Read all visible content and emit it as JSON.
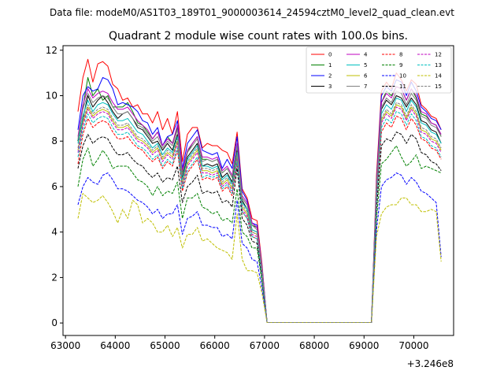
{
  "suptitle": "Data file: modeM0/AS1T03_189T01_9000003614_24594cztM0_level2_quad_clean.evt",
  "chart_data": {
    "type": "line",
    "title": "Quadrant 2 module wise count rates with 100.0s bins.",
    "xlabel": "",
    "ylabel": "",
    "x_offset_label": "+3.246e8",
    "xlim": [
      62950,
      70800
    ],
    "ylim": [
      -0.55,
      12.2
    ],
    "x_ticks": [
      63000,
      64000,
      65000,
      66000,
      67000,
      68000,
      69000,
      70000
    ],
    "x_tick_labels": [
      "63000",
      "64000",
      "65000",
      "66000",
      "67000",
      "68000",
      "69000",
      "70000"
    ],
    "y_ticks": [
      0,
      2,
      4,
      6,
      8,
      10,
      12
    ],
    "y_tick_labels": [
      "0",
      "2",
      "4",
      "6",
      "8",
      "10",
      "12"
    ],
    "grid": false,
    "legend_position": "top-right",
    "legend_columns": 4,
    "gaps": [
      [
        67060,
        69160
      ]
    ],
    "x": [
      63250,
      63350,
      63450,
      63550,
      63650,
      63750,
      63850,
      63950,
      64050,
      64150,
      64250,
      64350,
      64450,
      64550,
      64650,
      64750,
      64850,
      64950,
      65050,
      65150,
      65250,
      65350,
      65450,
      65550,
      65650,
      65750,
      65850,
      65950,
      66050,
      66150,
      66250,
      66350,
      66450,
      66550,
      66650,
      66750,
      66850,
      66950,
      67050,
      69150,
      69250,
      69350,
      69450,
      69550,
      69650,
      69750,
      69850,
      69950,
      70050,
      70150,
      70250,
      70350,
      70450,
      70550
    ],
    "series": [
      {
        "name": "0",
        "color": "#ff0000",
        "dash": "solid",
        "values": [
          9.3,
          10.8,
          11.6,
          10.6,
          11.4,
          11.5,
          11.3,
          10.5,
          10.3,
          9.8,
          9.9,
          9.5,
          9.6,
          9.2,
          9.2,
          8.8,
          9.3,
          8.5,
          9.0,
          8.3,
          9.3,
          7.1,
          8.3,
          8.6,
          8.6,
          7.7,
          7.9,
          7.8,
          7.8,
          7.6,
          7.5,
          7.0,
          8.4,
          5.9,
          5.5,
          4.6,
          4.5,
          2.6,
          0.02,
          0.02,
          6.5,
          10.2,
          10.6,
          10.3,
          11.0,
          10.7,
          10.2,
          10.7,
          10.5,
          9.6,
          9.4,
          9.1,
          9.0,
          8.5
        ]
      },
      {
        "name": "1",
        "color": "#008000",
        "dash": "solid",
        "values": [
          8.0,
          9.5,
          10.8,
          10.0,
          10.3,
          9.8,
          10.0,
          9.5,
          9.5,
          9.5,
          9.7,
          9.3,
          8.8,
          8.7,
          8.4,
          8.1,
          8.4,
          7.8,
          8.2,
          7.9,
          8.6,
          6.6,
          7.5,
          7.9,
          8.2,
          7.2,
          7.2,
          7.1,
          7.2,
          6.6,
          6.8,
          6.4,
          7.8,
          5.5,
          5.2,
          4.3,
          4.2,
          2.4,
          0.02,
          0.02,
          6.0,
          9.7,
          10.2,
          10.0,
          10.4,
          10.3,
          9.8,
          10.3,
          9.9,
          9.2,
          9.1,
          8.8,
          8.7,
          8.2
        ]
      },
      {
        "name": "2",
        "color": "#0000ff",
        "dash": "solid",
        "values": [
          8.5,
          10.0,
          10.4,
          10.2,
          10.3,
          10.8,
          10.7,
          10.3,
          9.6,
          9.7,
          9.6,
          9.5,
          9.3,
          8.9,
          8.8,
          8.3,
          8.6,
          7.8,
          8.2,
          8.3,
          8.9,
          6.8,
          7.9,
          8.2,
          8.5,
          7.6,
          7.5,
          7.4,
          7.5,
          6.8,
          7.2,
          6.8,
          8.2,
          5.8,
          5.4,
          4.4,
          4.3,
          2.5,
          0.02,
          0.02,
          6.2,
          10.0,
          10.4,
          10.2,
          10.7,
          10.6,
          10.0,
          10.6,
          10.2,
          9.5,
          9.3,
          9.0,
          8.9,
          8.5
        ]
      },
      {
        "name": "3",
        "color": "#000000",
        "dash": "solid",
        "values": [
          8.0,
          9.0,
          10.0,
          9.5,
          9.8,
          10.0,
          9.7,
          9.3,
          9.0,
          9.2,
          9.3,
          9.0,
          8.6,
          8.5,
          8.2,
          7.9,
          8.0,
          7.6,
          7.9,
          7.6,
          8.3,
          6.4,
          7.3,
          7.6,
          7.9,
          6.9,
          7.0,
          6.9,
          7.0,
          6.4,
          6.6,
          6.2,
          7.6,
          5.4,
          5.0,
          4.1,
          4.0,
          2.3,
          0.02,
          0.02,
          5.9,
          9.4,
          9.8,
          9.6,
          10.0,
          9.9,
          9.5,
          9.9,
          9.6,
          8.9,
          8.8,
          8.5,
          8.4,
          7.9
        ]
      },
      {
        "name": "4",
        "color": "#bf00bf",
        "dash": "solid",
        "values": [
          8.2,
          9.6,
          10.3,
          9.9,
          10.1,
          10.2,
          10.1,
          9.7,
          9.4,
          9.4,
          9.5,
          9.2,
          8.9,
          8.7,
          8.5,
          8.1,
          8.4,
          7.8,
          8.1,
          7.9,
          8.7,
          6.7,
          7.6,
          7.9,
          8.2,
          7.3,
          7.3,
          7.2,
          7.3,
          6.7,
          6.9,
          6.5,
          7.9,
          5.6,
          5.3,
          4.4,
          4.2,
          2.5,
          0.02,
          0.02,
          6.1,
          9.7,
          10.1,
          9.9,
          10.4,
          10.3,
          9.8,
          10.3,
          10.0,
          9.3,
          9.2,
          8.8,
          8.7,
          8.3
        ]
      },
      {
        "name": "5",
        "color": "#00bfbf",
        "dash": "solid",
        "values": [
          7.9,
          9.1,
          9.8,
          9.3,
          9.6,
          9.7,
          9.6,
          9.2,
          8.9,
          8.9,
          9.0,
          8.7,
          8.4,
          8.3,
          8.0,
          7.7,
          7.9,
          7.4,
          7.7,
          7.5,
          8.2,
          6.3,
          7.2,
          7.5,
          7.8,
          6.9,
          6.9,
          6.8,
          6.9,
          6.3,
          6.5,
          6.1,
          7.5,
          5.3,
          5.0,
          4.1,
          4.0,
          2.3,
          0.02,
          0.02,
          5.8,
          9.2,
          9.6,
          9.4,
          9.9,
          9.8,
          9.3,
          9.8,
          9.5,
          8.8,
          8.7,
          8.4,
          8.3,
          7.9
        ]
      },
      {
        "name": "6",
        "color": "#bfbf00",
        "dash": "solid",
        "values": [
          7.6,
          8.8,
          9.5,
          9.1,
          9.3,
          9.4,
          9.3,
          8.9,
          8.6,
          8.6,
          8.7,
          8.4,
          8.1,
          8.0,
          7.8,
          7.5,
          7.7,
          7.2,
          7.5,
          7.3,
          8.0,
          6.1,
          7.0,
          7.3,
          7.6,
          6.7,
          6.7,
          6.6,
          6.7,
          6.1,
          6.3,
          5.9,
          7.3,
          5.1,
          4.8,
          4.0,
          3.9,
          2.2,
          0.02,
          0.02,
          5.6,
          8.9,
          9.3,
          9.1,
          9.6,
          9.5,
          9.0,
          9.5,
          9.2,
          8.5,
          8.4,
          8.1,
          8.0,
          7.6
        ]
      },
      {
        "name": "7",
        "color": "#808080",
        "dash": "solid",
        "values": [
          8.1,
          9.4,
          10.1,
          9.7,
          9.9,
          10.0,
          9.9,
          9.5,
          9.2,
          9.2,
          9.3,
          9.0,
          8.7,
          8.6,
          8.3,
          8.0,
          8.2,
          7.7,
          8.0,
          7.8,
          8.5,
          6.5,
          7.5,
          7.8,
          8.1,
          7.1,
          7.2,
          7.1,
          7.2,
          6.6,
          6.8,
          6.4,
          7.8,
          5.5,
          5.2,
          4.3,
          4.1,
          2.4,
          0.02,
          0.02,
          6.0,
          9.5,
          9.9,
          9.7,
          10.2,
          10.1,
          9.6,
          10.1,
          9.8,
          9.1,
          9.0,
          8.7,
          8.6,
          8.2
        ]
      },
      {
        "name": "8",
        "color": "#ff0000",
        "dash": "dashed",
        "values": [
          7.0,
          8.3,
          9.0,
          8.6,
          8.8,
          8.9,
          8.8,
          8.4,
          8.1,
          8.1,
          8.2,
          7.9,
          7.7,
          7.6,
          7.3,
          7.1,
          7.3,
          6.8,
          7.1,
          6.9,
          7.6,
          5.8,
          6.6,
          6.9,
          7.2,
          6.3,
          6.4,
          6.3,
          6.4,
          5.8,
          6.0,
          5.6,
          7.0,
          4.9,
          4.6,
          3.8,
          3.7,
          2.1,
          0.02,
          0.02,
          5.3,
          8.4,
          8.8,
          8.6,
          9.1,
          9.0,
          8.5,
          9.0,
          8.7,
          8.1,
          8.0,
          7.7,
          7.6,
          7.2
        ]
      },
      {
        "name": "9",
        "color": "#008000",
        "dash": "dashed",
        "values": [
          6.0,
          7.2,
          7.7,
          6.9,
          7.2,
          7.6,
          7.3,
          6.8,
          6.9,
          6.9,
          6.9,
          6.6,
          6.3,
          6.2,
          6.0,
          5.6,
          6.0,
          5.6,
          5.8,
          5.7,
          6.2,
          4.6,
          5.5,
          5.5,
          5.7,
          5.1,
          5.0,
          4.8,
          4.9,
          4.5,
          4.6,
          4.4,
          5.9,
          4.0,
          3.8,
          3.3,
          3.3,
          1.8,
          0.02,
          0.02,
          4.6,
          7.0,
          7.2,
          7.5,
          7.8,
          7.3,
          6.9,
          7.1,
          7.4,
          6.8,
          6.9,
          6.8,
          6.7,
          6.6
        ]
      },
      {
        "name": "10",
        "color": "#0000ff",
        "dash": "dashed",
        "values": [
          5.2,
          6.0,
          6.4,
          6.2,
          6.1,
          6.5,
          6.6,
          6.3,
          5.9,
          5.9,
          5.8,
          5.6,
          5.4,
          5.3,
          5.1,
          4.8,
          5.0,
          4.6,
          4.8,
          4.8,
          5.2,
          3.9,
          4.6,
          4.7,
          4.9,
          4.3,
          4.3,
          4.2,
          4.2,
          3.8,
          3.9,
          3.7,
          5.4,
          3.5,
          3.3,
          2.8,
          2.7,
          1.5,
          0.02,
          0.02,
          4.1,
          6.0,
          6.3,
          6.4,
          6.6,
          6.5,
          6.1,
          6.4,
          6.2,
          5.8,
          5.7,
          5.5,
          5.3,
          2.9
        ]
      },
      {
        "name": "11",
        "color": "#000000",
        "dash": "dashed",
        "values": [
          6.8,
          7.8,
          8.3,
          7.9,
          8.1,
          8.2,
          8.1,
          7.7,
          7.4,
          7.4,
          7.5,
          7.2,
          7.0,
          6.9,
          6.6,
          6.4,
          6.6,
          6.2,
          6.4,
          6.3,
          6.9,
          5.3,
          6.0,
          6.2,
          6.5,
          5.7,
          5.8,
          5.7,
          5.8,
          5.3,
          5.4,
          5.1,
          6.8,
          4.6,
          4.3,
          3.6,
          3.5,
          2.0,
          0.02,
          0.02,
          5.0,
          7.8,
          8.1,
          8.0,
          8.4,
          8.3,
          7.9,
          8.3,
          8.1,
          7.5,
          7.4,
          7.1,
          7.0,
          6.7
        ]
      },
      {
        "name": "12",
        "color": "#bf00bf",
        "dash": "dashed",
        "values": [
          7.5,
          8.7,
          9.4,
          9.0,
          9.2,
          9.3,
          9.2,
          8.8,
          8.5,
          8.5,
          8.6,
          8.3,
          8.0,
          7.9,
          7.7,
          7.4,
          7.6,
          7.1,
          7.4,
          7.2,
          7.9,
          6.0,
          6.9,
          7.2,
          7.5,
          6.6,
          6.6,
          6.5,
          6.6,
          6.0,
          6.2,
          5.8,
          7.2,
          5.0,
          4.7,
          3.9,
          3.8,
          2.2,
          0.02,
          0.02,
          5.5,
          8.8,
          9.2,
          9.0,
          9.5,
          9.4,
          8.9,
          9.4,
          9.1,
          8.4,
          8.3,
          8.0,
          7.9,
          7.5
        ]
      },
      {
        "name": "13",
        "color": "#00bfbf",
        "dash": "dashed",
        "values": [
          7.3,
          8.5,
          9.2,
          8.8,
          9.0,
          9.1,
          9.0,
          8.6,
          8.3,
          8.3,
          8.4,
          8.1,
          7.8,
          7.7,
          7.5,
          7.2,
          7.4,
          6.9,
          7.2,
          7.0,
          7.7,
          5.9,
          6.7,
          7.0,
          7.3,
          6.4,
          6.5,
          6.4,
          6.5,
          5.9,
          6.1,
          5.7,
          7.1,
          4.9,
          4.6,
          3.8,
          3.7,
          2.1,
          0.02,
          0.02,
          5.4,
          8.6,
          9.0,
          8.8,
          9.3,
          9.2,
          8.7,
          9.2,
          8.9,
          8.2,
          8.1,
          7.8,
          7.7,
          7.3
        ]
      },
      {
        "name": "14",
        "color": "#bfbf00",
        "dash": "dashed",
        "values": [
          4.6,
          5.7,
          5.5,
          5.3,
          5.4,
          5.6,
          5.3,
          4.9,
          4.4,
          5.0,
          4.6,
          5.4,
          5.2,
          4.4,
          4.6,
          4.4,
          4.0,
          4.0,
          4.3,
          3.8,
          4.2,
          3.3,
          3.9,
          3.9,
          4.2,
          3.6,
          3.7,
          3.5,
          3.3,
          3.2,
          3.1,
          2.8,
          4.8,
          2.8,
          2.3,
          2.3,
          2.2,
          1.3,
          0.02,
          0.02,
          3.8,
          4.8,
          5.1,
          5.2,
          5.2,
          5.5,
          5.5,
          5.2,
          5.2,
          4.9,
          4.9,
          5.0,
          4.9,
          2.7
        ]
      },
      {
        "name": "15",
        "color": "#808080",
        "dash": "dashed",
        "values": [
          7.7,
          8.9,
          9.6,
          9.2,
          9.4,
          9.5,
          9.4,
          9.0,
          8.7,
          8.7,
          8.8,
          8.5,
          8.2,
          8.1,
          7.9,
          7.6,
          7.8,
          7.3,
          7.6,
          7.4,
          8.1,
          6.2,
          7.1,
          7.4,
          7.7,
          6.8,
          6.8,
          6.7,
          6.8,
          6.2,
          6.4,
          6.0,
          7.4,
          5.2,
          4.9,
          4.0,
          3.9,
          2.2,
          0.02,
          0.02,
          5.7,
          9.0,
          9.4,
          9.2,
          9.7,
          9.6,
          9.1,
          9.6,
          9.3,
          8.6,
          8.5,
          8.2,
          8.1,
          7.7
        ]
      }
    ]
  }
}
